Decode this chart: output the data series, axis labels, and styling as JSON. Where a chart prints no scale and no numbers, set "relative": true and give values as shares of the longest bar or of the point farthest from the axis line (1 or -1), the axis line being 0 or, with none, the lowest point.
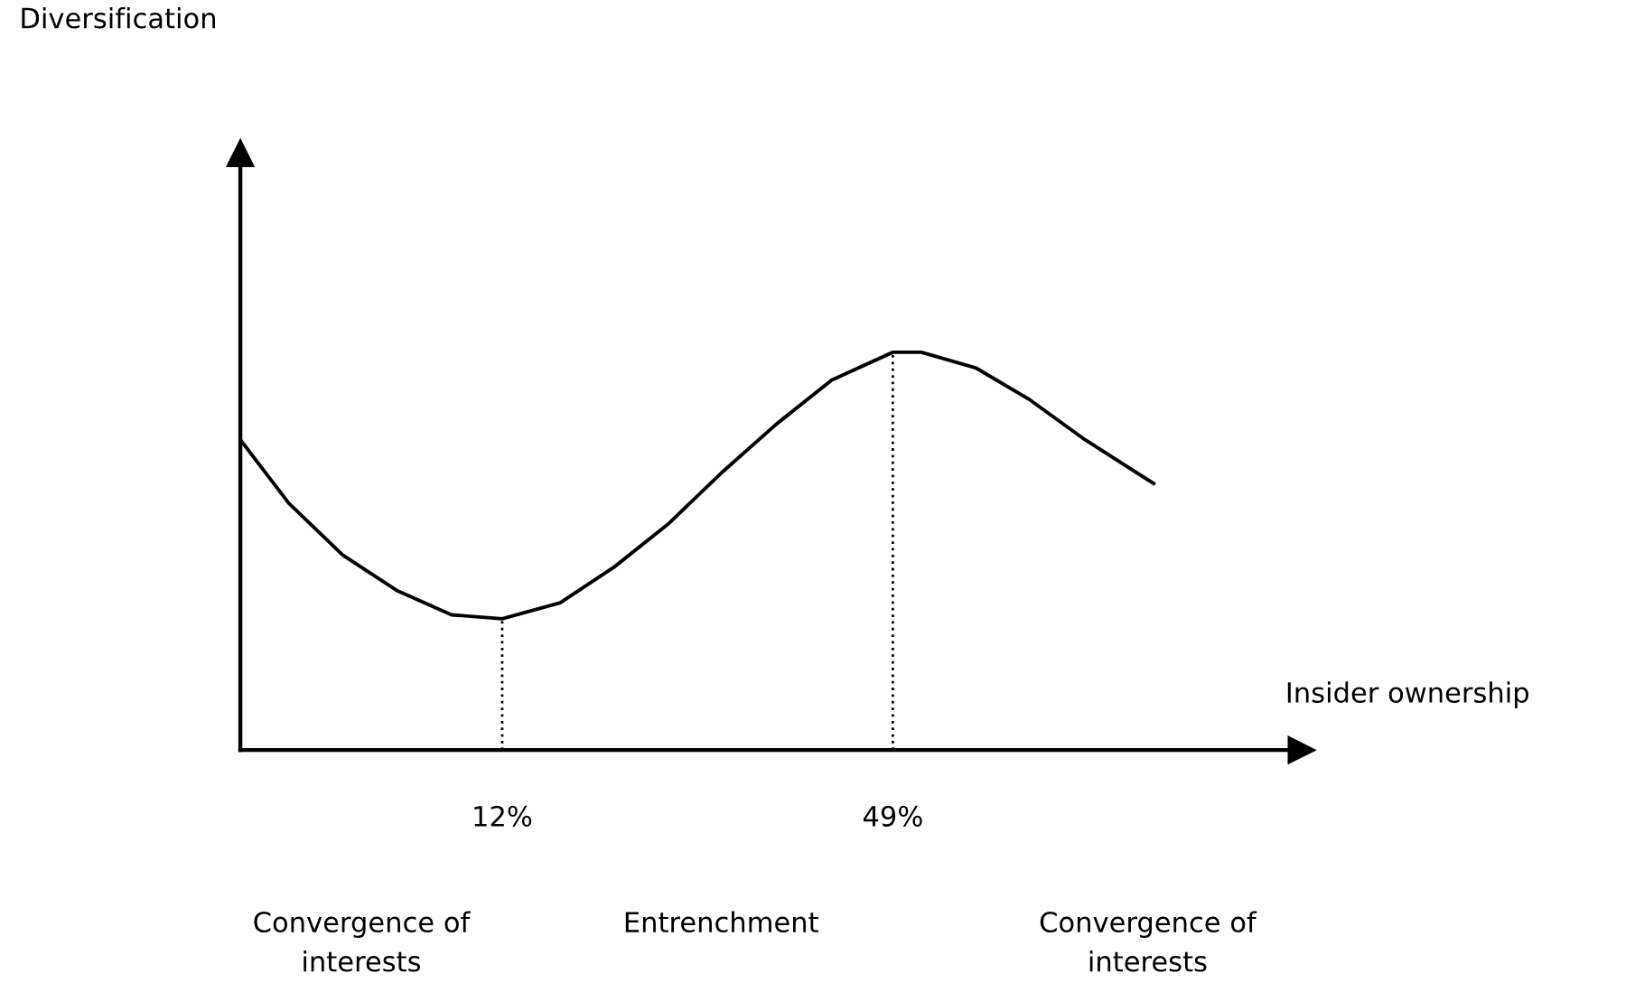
{
  "chart_data": {
    "type": "line",
    "relative": true,
    "xlabel": "Insider ownership",
    "x": [
      -12.8,
      -8.2,
      -3.1,
      2.1,
      7.2,
      12,
      17.5,
      22.6,
      27.8,
      32.9,
      38.0,
      43.2,
      49,
      51.7,
      56.9,
      62.0,
      67.2,
      73.7
    ],
    "series": [
      {
        "color": "#000000",
        "values": [
          0.78,
          0.62,
          0.49,
          0.4,
          0.34,
          0.33,
          0.37,
          0.46,
          0.57,
          0.7,
          0.82,
          0.93,
          1.0,
          1.0,
          0.96,
          0.88,
          0.78,
          0.67
        ]
      }
    ],
    "xlim": [
      -12.8,
      87.7
    ],
    "xticks": [
      {
        "value": 12,
        "label": "12%"
      },
      {
        "value": 49,
        "label": "49%"
      }
    ],
    "ref_lines": [
      {
        "axis": "x",
        "value": 12,
        "line_style": "dotted",
        "color": "#000000"
      },
      {
        "axis": "x",
        "value": 49,
        "line_style": "dotted",
        "color": "#000000"
      }
    ],
    "annotations": [
      "Diversification",
      "Convergence of\ninterests",
      "Entrenchment",
      "Convergence of\ninterests"
    ],
    "grid": false,
    "marker": "none",
    "line_style": "solid",
    "legend": false
  }
}
